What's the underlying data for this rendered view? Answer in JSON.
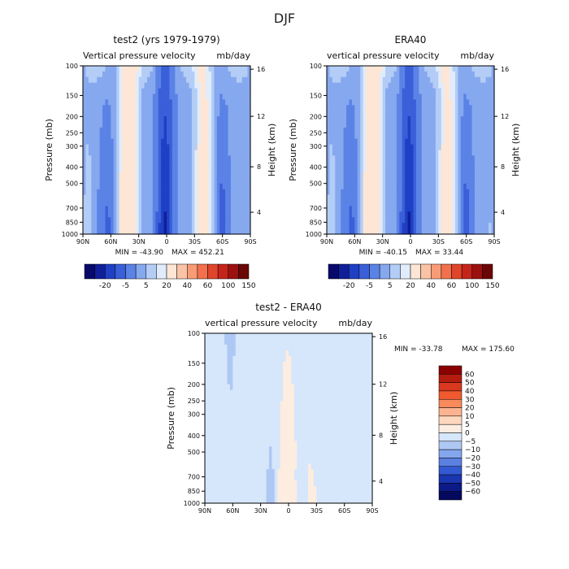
{
  "page_title": "DJF",
  "chart_data": [
    {
      "type": "heatmap",
      "panel": "top-left",
      "title": "test2 (yrs 1979-1979)",
      "subtitle_left": "Vertical pressure velocity",
      "subtitle_right": "mb/day",
      "xlabel": "",
      "ylabel": "Pressure (mb)",
      "y2label": "Height (km)",
      "x_ticks": [
        "90N",
        "60N",
        "30N",
        "0",
        "30S",
        "60S",
        "90S"
      ],
      "y_ticks": [
        "100",
        "150",
        "200",
        "250",
        "300",
        "400",
        "500",
        "700",
        "850",
        "1000"
      ],
      "y2_ticks": [
        "16",
        "12",
        "8",
        "4"
      ],
      "min_label": "MIN = -43.90",
      "max_label": "MAX = 452.21",
      "colorbar_labels": [
        "-20",
        "-5",
        "5",
        "20",
        "40",
        "60",
        "100",
        "150"
      ],
      "colorbar_colors": [
        "#08096b",
        "#0f1f9a",
        "#1f3fc4",
        "#3a5fd9",
        "#5b83e6",
        "#86a8ef",
        "#b3cdf6",
        "#e0ecfb",
        "#fde6d6",
        "#fbc3a5",
        "#f89c77",
        "#f2704c",
        "#e0452b",
        "#c4241a",
        "#9c1010",
        "#6b0606"
      ]
    },
    {
      "type": "heatmap",
      "panel": "top-right",
      "title": "ERA40",
      "subtitle_left": "vertical pressure velocity",
      "subtitle_right": "mb/day",
      "xlabel": "",
      "ylabel": "Pressure (mb)",
      "y2label": "Height (km)",
      "x_ticks": [
        "90N",
        "60N",
        "30N",
        "0",
        "30S",
        "60S",
        "90S"
      ],
      "y_ticks": [
        "100",
        "150",
        "200",
        "250",
        "300",
        "400",
        "500",
        "700",
        "850",
        "1000"
      ],
      "y2_ticks": [
        "16",
        "12",
        "8",
        "4"
      ],
      "min_label": "MIN = -40.15",
      "max_label": "MAX =   33.44",
      "colorbar_labels": [
        "-20",
        "-5",
        "5",
        "20",
        "40",
        "60",
        "100",
        "150"
      ],
      "colorbar_colors": [
        "#08096b",
        "#0f1f9a",
        "#1f3fc4",
        "#3a5fd9",
        "#5b83e6",
        "#86a8ef",
        "#b3cdf6",
        "#e0ecfb",
        "#fde6d6",
        "#fbc3a5",
        "#f89c77",
        "#f2704c",
        "#e0452b",
        "#c4241a",
        "#9c1010",
        "#6b0606"
      ]
    },
    {
      "type": "heatmap",
      "panel": "bottom",
      "title": "test2 - ERA40",
      "subtitle_left": "vertical pressure velocity",
      "subtitle_right": "mb/day",
      "xlabel": "",
      "ylabel": "Pressure (mb)",
      "y2label": "Height (km)",
      "x_ticks": [
        "90N",
        "60N",
        "30N",
        "0",
        "30S",
        "60S",
        "90S"
      ],
      "y_ticks": [
        "100",
        "150",
        "200",
        "250",
        "300",
        "400",
        "500",
        "700",
        "850",
        "1000"
      ],
      "y2_ticks": [
        "16",
        "12",
        "8",
        "4"
      ],
      "min_label": "MIN = -33.78",
      "max_label": "MAX = 175.60",
      "colorbar_labels": [
        "60",
        "50",
        "40",
        "30",
        "20",
        "10",
        "5",
        "0",
        "−5",
        "−10",
        "−20",
        "−30",
        "−40",
        "−50",
        "−60"
      ],
      "colorbar_colors": [
        "#8b0000",
        "#b51c10",
        "#d9381f",
        "#f05a2e",
        "#f88a5c",
        "#fbb391",
        "#fdd7be",
        "#fdece0",
        "#d6e6fb",
        "#aec8f4",
        "#84a6ec",
        "#5a80e2",
        "#3359d3",
        "#1a36b0",
        "#0b1a86",
        "#05095e"
      ]
    }
  ]
}
